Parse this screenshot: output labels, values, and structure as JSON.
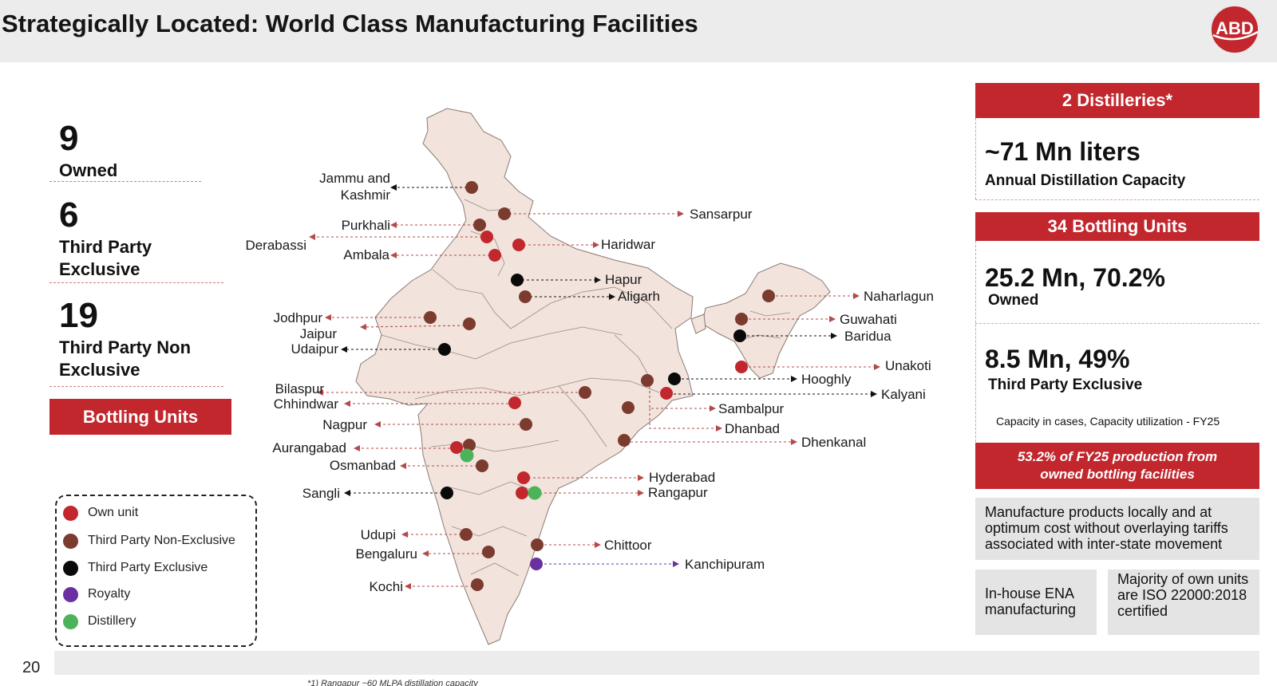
{
  "header": {
    "title": "Strategically Located: World Class Manufacturing Facilities",
    "logo_text": "ABD"
  },
  "stats": [
    {
      "number": "9",
      "label": "Owned"
    },
    {
      "number": "6",
      "label": "Third Party Exclusive"
    },
    {
      "number": "19",
      "label": "Third Party Non Exclusive"
    }
  ],
  "bottling_button": "Bottling Units",
  "legend": [
    {
      "label": "Own unit",
      "color": "#c1272d"
    },
    {
      "label": "Third Party Non-Exclusive",
      "color": "#7b3b2e"
    },
    {
      "label": "Third Party Exclusive",
      "color": "#0a0a0a"
    },
    {
      "label": "Royalty",
      "color": "#6a2fa0"
    },
    {
      "label": "Distillery",
      "color": "#4db35a"
    }
  ],
  "map": {
    "labels": {
      "jammu": "Jammu and",
      "kashmir": "Kashmir",
      "purkhali": "Purkhali",
      "derabassi": "Derabassi",
      "ambala": "Ambala",
      "sansarpur": "Sansarpur",
      "haridwar": "Haridwar",
      "hapur": "Hapur",
      "aligarh": "Aligarh",
      "jodhpur": "Jodhpur",
      "jaipur": "Jaipur",
      "udaipur": "Udaipur",
      "bilaspur": "Bilaspur",
      "chhindwar": "Chhindwar",
      "nagpur": "Nagpur",
      "aurangabad": "Aurangabad",
      "osmanbad": "Osmanbad",
      "sangli": "Sangli",
      "udupi": "Udupi",
      "bengaluru": "Bengaluru",
      "kochi": "Kochi",
      "naharlagun": "Naharlagun",
      "guwahati": "Guwahati",
      "baridua": "Baridua",
      "unakoti": "Unakoti",
      "hooghly": "Hooghly",
      "kalyani": "Kalyani",
      "sambalpur": "Sambalpur",
      "dhanbad": "Dhanbad",
      "dhenkanal": "Dhenkanal",
      "hyderabad": "Hyderabad",
      "rangapur": "Rangapur",
      "chittoor": "Chittoor",
      "kanchipuram": "Kanchipuram"
    }
  },
  "right_panel": {
    "distilleries_header": "2 Distilleries*",
    "distillation_value": "~71 Mn liters",
    "distillation_label": "Annual Distillation Capacity",
    "bottling_header": "34 Bottling Units",
    "owned_value": "25.2 Mn, 70.2%",
    "owned_label": "Owned",
    "tpe_value": "8.5 Mn, 49%",
    "tpe_label": "Third Party Exclusive",
    "capacity_note": "Capacity in cases, Capacity utilization - FY25",
    "production_note": "53.2% of FY25 production from owned bottling facilities",
    "manufacture_note": "Manufacture products locally and at optimum cost without overlaying tariffs associated with inter-state movement",
    "ena_note": "In-house ENA manufacturing",
    "iso_note": "Majority of own units are ISO 22000:2018 certified"
  },
  "footer": {
    "page_number": "20",
    "footnote": "*1) Rangapur ~60 MLPA distillation capacity"
  }
}
